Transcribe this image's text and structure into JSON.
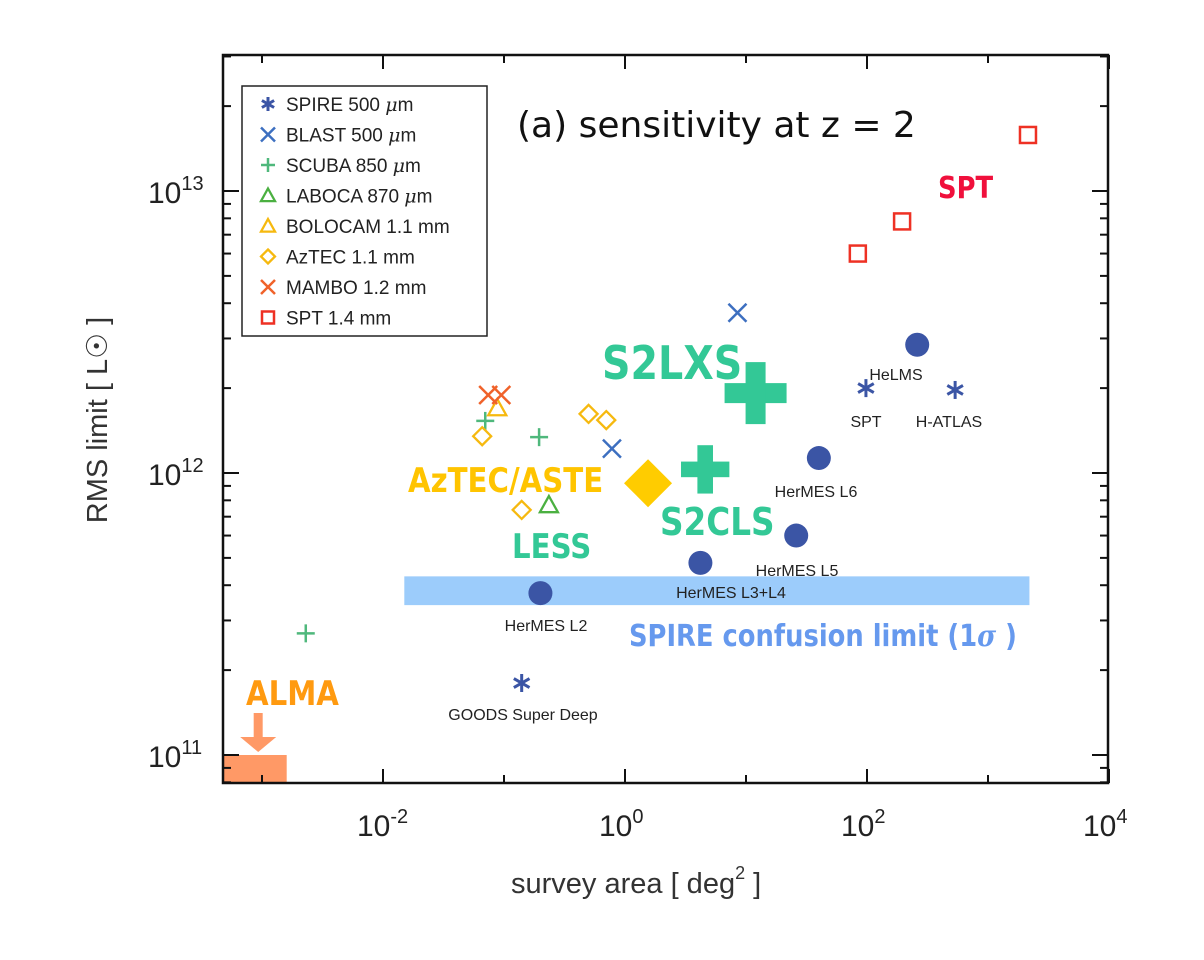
{
  "chart_data": {
    "type": "scatter",
    "title": "(a) sensitivity at z = 2",
    "xlabel": "survey area [ deg² ]",
    "xlabel_base": "survey area [ deg",
    "xlabel_sup": "2",
    "xlabel_end": " ]",
    "ylabel": "RMS limit [ L☉ ]",
    "xscale": "log",
    "yscale": "log",
    "xlim": [
      0.00048,
      10000
    ],
    "ylim": [
      80000000000.0,
      30000000000000.0
    ],
    "grid": false,
    "legend_position": "top-left",
    "x_ticks": [
      {
        "value": 0.01,
        "base": "10",
        "exp": "-2"
      },
      {
        "value": 1,
        "base": "10",
        "exp": "0"
      },
      {
        "value": 100,
        "base": "10",
        "exp": "2"
      },
      {
        "value": 10000,
        "base": "10",
        "exp": "4"
      }
    ],
    "y_ticks": [
      {
        "value": 100000000000.0,
        "base": "10",
        "exp": "11"
      },
      {
        "value": 1000000000000.0,
        "base": "10",
        "exp": "12"
      },
      {
        "value": 10000000000000.0,
        "base": "10",
        "exp": "13"
      }
    ],
    "series": [
      {
        "name": "SPIRE 500 μm",
        "legend": "SPIRE 500 ",
        "unit": "μm",
        "marker": "asterisk",
        "color": "#3b55a5",
        "points": [
          {
            "x": 0.14,
            "y": 180000000000.0,
            "label": "GOODS Super Deep"
          },
          {
            "x": 98,
            "y": 2000000000000.0,
            "label": "SPT"
          },
          {
            "x": 535,
            "y": 1970000000000.0,
            "label": "H-ATLAS"
          }
        ]
      },
      {
        "name": "BLAST 500 μm",
        "legend": "BLAST 500 ",
        "unit": "μm",
        "marker": "x",
        "color": "#3d6fc0",
        "points": [
          {
            "x": 8.5,
            "y": 3700000000000.0,
            "label": ""
          },
          {
            "x": 0.78,
            "y": 1220000000000.0,
            "label": ""
          }
        ]
      },
      {
        "name": "SCUBA 850 μm",
        "legend": "SCUBA 850 ",
        "unit": "μm",
        "marker": "plus",
        "color": "#4fb87c",
        "points": [
          {
            "x": 0.07,
            "y": 1530000000000.0,
            "label": ""
          },
          {
            "x": 0.195,
            "y": 1340000000000.0,
            "label": ""
          },
          {
            "x": 0.0023,
            "y": 270000000000.0,
            "label": ""
          }
        ]
      },
      {
        "name": "LABOCA 870 μm",
        "legend": "LABOCA 870 ",
        "unit": "μm",
        "marker": "triangle",
        "color": "#4bb041",
        "points": [
          {
            "x": 0.235,
            "y": 770000000000.0,
            "label": ""
          }
        ]
      },
      {
        "name": "BOLOCAM 1.1 mm",
        "legend": "BOLOCAM 1.1 mm",
        "unit": "",
        "marker": "triangle",
        "color": "#f6b90f",
        "points": [
          {
            "x": 0.088,
            "y": 1700000000000.0,
            "label": ""
          }
        ]
      },
      {
        "name": "AzTEC 1.1 mm",
        "legend": "AzTEC 1.1 mm",
        "unit": "",
        "marker": "diamond",
        "color": "#f6b90f",
        "points": [
          {
            "x": 0.066,
            "y": 1350000000000.0,
            "label": ""
          },
          {
            "x": 0.5,
            "y": 1620000000000.0,
            "label": ""
          },
          {
            "x": 0.7,
            "y": 1540000000000.0,
            "label": ""
          },
          {
            "x": 0.14,
            "y": 740000000000.0,
            "label": ""
          }
        ]
      },
      {
        "name": "MAMBO 1.2 mm",
        "legend": "MAMBO 1.2 mm",
        "unit": "",
        "marker": "x",
        "color": "#f0622a",
        "points": [
          {
            "x": 0.074,
            "y": 1890000000000.0,
            "label": ""
          },
          {
            "x": 0.095,
            "y": 1890000000000.0,
            "label": ""
          }
        ]
      },
      {
        "name": "SPT 1.4 mm",
        "legend": "SPT 1.4 mm",
        "unit": "",
        "marker": "square",
        "color": "#ee3124",
        "points": [
          {
            "x": 84,
            "y": 6000000000000.0,
            "label": ""
          },
          {
            "x": 195,
            "y": 7800000000000.0,
            "label": ""
          },
          {
            "x": 2140,
            "y": 15800000000000.0,
            "label": ""
          }
        ]
      }
    ],
    "herschel_fields": {
      "marker": "circle",
      "color": "#3b55a5",
      "points": [
        {
          "x": 0.2,
          "y": 375000000000.0,
          "label": "HerMES L2"
        },
        {
          "x": 4.2,
          "y": 480000000000.0,
          "label": "HerMES L3+L4"
        },
        {
          "x": 26,
          "y": 600000000000.0,
          "label": "HerMES L5"
        },
        {
          "x": 40,
          "y": 1130000000000.0,
          "label": "HerMES L6"
        },
        {
          "x": 260,
          "y": 2850000000000.0,
          "label": "HeLMS"
        }
      ]
    },
    "highlight_surveys": [
      {
        "name": "S2LXS",
        "marker": "big-plus",
        "color": "#33c896",
        "x": 12,
        "y": 1920000000000.0
      },
      {
        "name": "S2CLS",
        "marker": "big-plus",
        "color": "#33c896",
        "x": 4.6,
        "y": 1030000000000.0
      },
      {
        "name": "AzTEC/ASTE",
        "marker": "big-diamond",
        "color": "#ffcc00",
        "x": 1.55,
        "y": 920000000000.0
      }
    ],
    "annotations": [
      {
        "text": "SPT",
        "color": "#f0103c"
      },
      {
        "text": "S2LXS",
        "color": "#33c896"
      },
      {
        "text": "S2CLS",
        "color": "#33c896"
      },
      {
        "text": "AzTEC/ASTE",
        "color": "#ffc400"
      },
      {
        "text": "LESS",
        "color": "#33c896"
      },
      {
        "text": "ALMA",
        "color": "#ff9a10"
      },
      {
        "text": "SPIRE confusion limit (1σ)",
        "color": "#6699ee"
      }
    ],
    "confusion_band": {
      "label": "SPIRE confusion limit (1σ)",
      "label_main": "SPIRE confusion limit (1",
      "label_sigma": "σ",
      "label_end": " )",
      "x_range": [
        0.015,
        2200
      ],
      "y_range": [
        340000000000.0,
        430000000000.0
      ],
      "color": "#9cccfb"
    },
    "alma_region": {
      "label": "ALMA",
      "x_range": [
        0.00048,
        0.0016
      ],
      "y_range": [
        80000000000.0,
        100000000000.0
      ],
      "arrow_x": 0.00093,
      "color": "#ff9966"
    }
  }
}
